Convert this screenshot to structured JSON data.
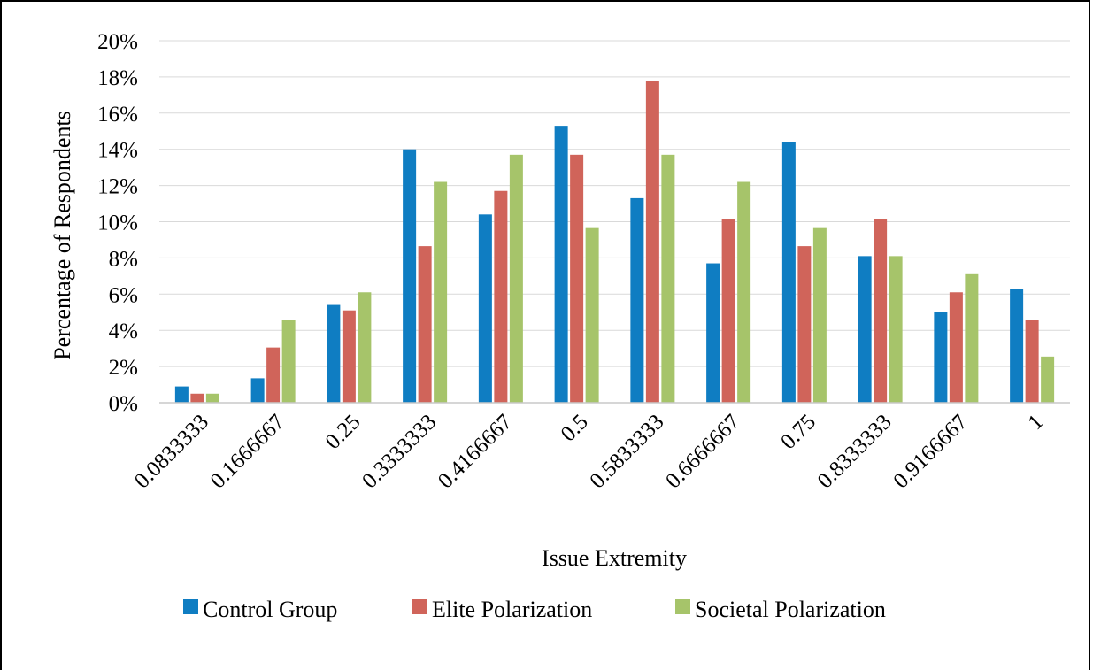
{
  "chart_data": {
    "type": "bar",
    "xlabel": "Issue Extremity",
    "ylabel": "Percentage of Respondents",
    "ylim": [
      0,
      20
    ],
    "yticks": [
      "0%",
      "2%",
      "4%",
      "6%",
      "8%",
      "10%",
      "12%",
      "14%",
      "16%",
      "18%",
      "20%"
    ],
    "categories": [
      "0.0833333",
      "0.1666667",
      "0.25",
      "0.3333333",
      "0.4166667",
      "0.5",
      "0.5833333",
      "0.6666667",
      "0.75",
      "0.8333333",
      "0.9166667",
      "1"
    ],
    "grid": true,
    "legend_position": "bottom",
    "series": [
      {
        "name": "Control Group",
        "color": "#0F7DC2",
        "values": [
          0.9,
          1.35,
          5.4,
          14.0,
          10.4,
          15.3,
          11.3,
          7.7,
          14.4,
          8.1,
          5.0,
          6.3
        ]
      },
      {
        "name": "Elite Polarization",
        "color": "#D0645A",
        "values": [
          0.5,
          3.05,
          5.1,
          8.65,
          11.7,
          13.7,
          17.8,
          10.15,
          8.65,
          10.15,
          6.1,
          4.55
        ]
      },
      {
        "name": "Societal Polarization",
        "color": "#A6C46A",
        "values": [
          0.5,
          4.55,
          6.1,
          12.2,
          13.7,
          9.65,
          13.7,
          12.2,
          9.65,
          8.1,
          7.1,
          2.55
        ]
      }
    ]
  }
}
